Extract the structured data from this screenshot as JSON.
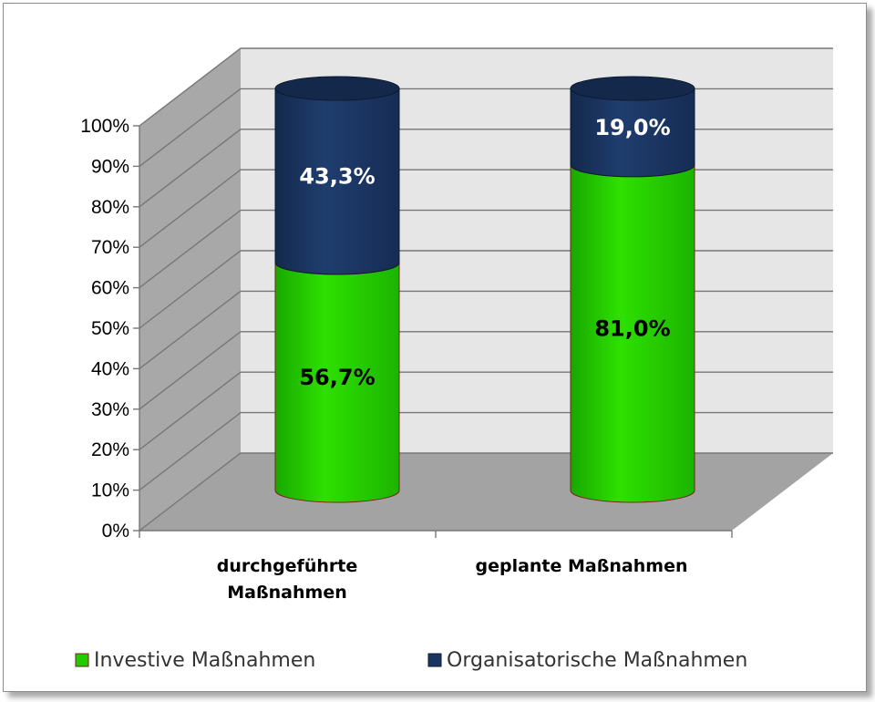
{
  "chart_data": {
    "type": "bar",
    "stacked": true,
    "three_d": true,
    "categories": [
      "durchgeführte Maßnahmen",
      "geplante Maßnahmen"
    ],
    "category_lines": [
      [
        "durchgeführte",
        "Maßnahmen"
      ],
      [
        "geplante Maßnahmen"
      ]
    ],
    "series": [
      {
        "name": "Investive Maßnahmen",
        "values": [
          56.7,
          81.0
        ],
        "labels": [
          "56,7%",
          "81,0%"
        ],
        "color": "#22cc00"
      },
      {
        "name": "Organisatorische Maßnahmen",
        "values": [
          43.3,
          19.0
        ],
        "labels": [
          "43,3%",
          "19,0%"
        ],
        "color": "#1a3560"
      }
    ],
    "ylim": [
      0,
      100
    ],
    "yticks": [
      "0%",
      "10%",
      "20%",
      "30%",
      "40%",
      "50%",
      "60%",
      "70%",
      "80%",
      "90%",
      "100%"
    ],
    "grid": true,
    "legend_position": "bottom"
  }
}
